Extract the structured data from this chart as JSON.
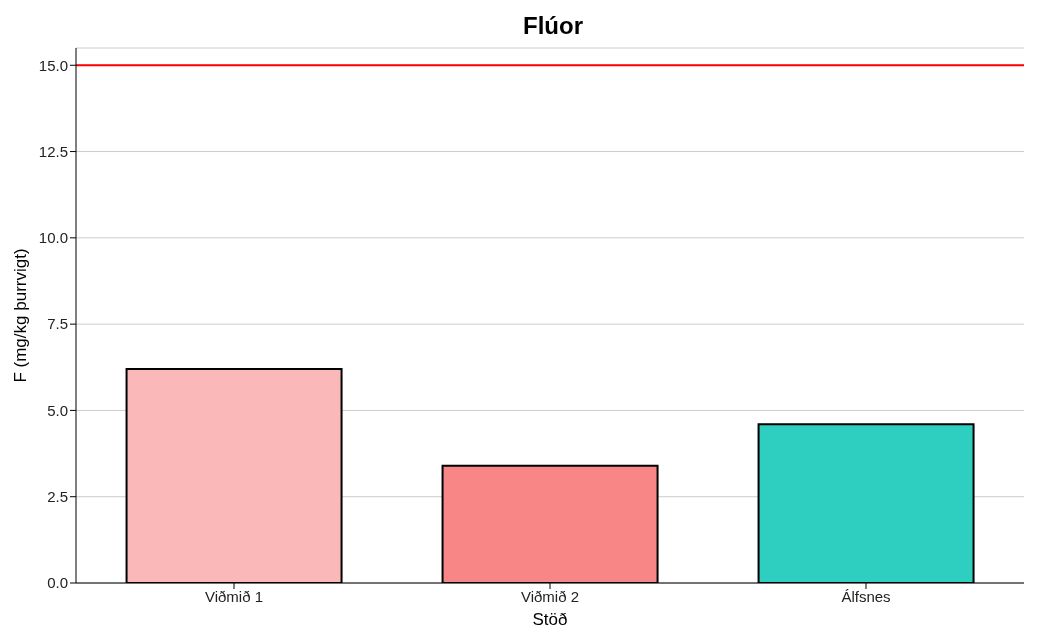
{
  "chart_data": {
    "type": "bar",
    "title": "Flúor",
    "xlabel": "Stöð",
    "ylabel": "F (mg/kg þurrvigt)",
    "categories": [
      "Viðmið 1",
      "Viðmið 2",
      "Álfsnes"
    ],
    "values": [
      6.2,
      3.4,
      4.6
    ],
    "colors": [
      "#fbb8b9",
      "#f98686",
      "#2ecfc0"
    ],
    "ylim": [
      0,
      15.5
    ],
    "yticks": [
      {
        "value": 0,
        "label": "0.0"
      },
      {
        "value": 2.5,
        "label": "2.5"
      },
      {
        "value": 5,
        "label": "5.0"
      },
      {
        "value": 7.5,
        "label": "7.5"
      },
      {
        "value": 10,
        "label": "10.0"
      },
      {
        "value": 12.5,
        "label": "12.5"
      },
      {
        "value": 15,
        "label": "15.0"
      }
    ],
    "ref_lines": [
      {
        "axis": "y",
        "value": 15,
        "color": "#ff0000"
      }
    ],
    "grid": "y",
    "legend": false
  }
}
